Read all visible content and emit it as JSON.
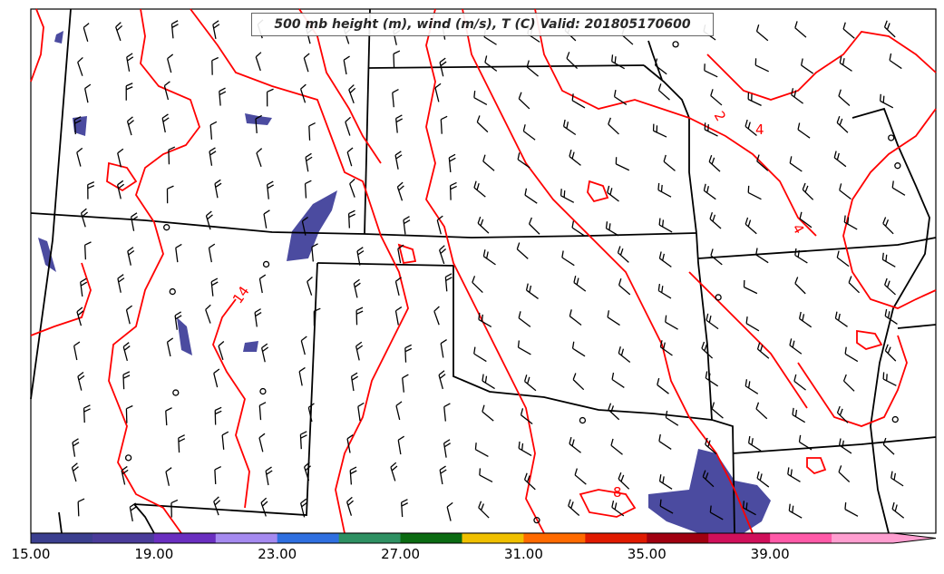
{
  "title": "500 mb height (m), wind (m/s), T (C) Valid: 201805170600",
  "contour_labels": [
    "2",
    "4",
    "4",
    "14",
    "8"
  ],
  "colorbar": {
    "labels": [
      "15.00",
      "19.00",
      "23.00",
      "27.00",
      "31.00",
      "35.00",
      "39.00"
    ],
    "colors": [
      "#3b3f8f",
      "#4a3c9a",
      "#6a2fc0",
      "#a58af0",
      "#2f6fe0",
      "#2e9062",
      "#0b6b12",
      "#f0c000",
      "#ff6a00",
      "#e01a00",
      "#a00010",
      "#d0105a",
      "#ff5aa8",
      "#ff9ed0"
    ],
    "extend": "max"
  },
  "colors": {
    "isotherm": "#ff0000",
    "boundary": "#000000",
    "shade": "#4b4ba0"
  },
  "barb_type": "wind-barb-icon"
}
